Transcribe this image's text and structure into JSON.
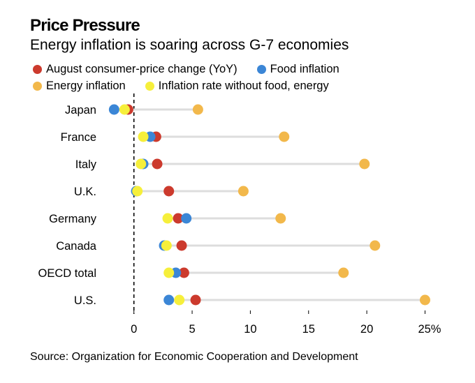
{
  "title": "Price Pressure",
  "subtitle": "Energy inflation is soaring across G-7 economies",
  "source": "Source: Organization for Economic Cooperation and Development",
  "legend": [
    {
      "label": "August consumer-price change (YoY)",
      "color": "#cc3a2d",
      "key": "cpi"
    },
    {
      "label": "Food inflation",
      "color": "#3b86d6",
      "key": "food"
    },
    {
      "label": "Energy inflation",
      "color": "#f2b84b",
      "key": "energy"
    },
    {
      "label": "Inflation rate without food, energy",
      "color": "#f6ef3b",
      "key": "core"
    }
  ],
  "chart_data": {
    "type": "dot-plot",
    "title": "Price Pressure",
    "subtitle": "Energy inflation is soaring across G-7 economies",
    "xlabel": "",
    "ylabel": "",
    "x_unit": "%",
    "xlim": [
      -2.5,
      26
    ],
    "x_ticks": [
      0,
      5,
      10,
      15,
      20,
      25
    ],
    "x_tick_labels": [
      "0",
      "5",
      "10",
      "15",
      "20",
      "25%"
    ],
    "reference_line": {
      "x": 0,
      "style": "dashed"
    },
    "grid": false,
    "legend_position": "top",
    "categories": [
      "Japan",
      "France",
      "Italy",
      "U.K.",
      "Germany",
      "Canada",
      "OECD total",
      "U.S."
    ],
    "series": [
      {
        "name": "August consumer-price change (YoY)",
        "key": "cpi",
        "color": "#cc3a2d",
        "values": [
          -0.5,
          1.9,
          2.0,
          3.0,
          3.8,
          4.1,
          4.3,
          5.3
        ]
      },
      {
        "name": "Food inflation",
        "key": "food",
        "color": "#3b86d6",
        "values": [
          -1.7,
          1.4,
          0.8,
          0.2,
          4.5,
          2.6,
          3.6,
          3.0
        ]
      },
      {
        "name": "Energy inflation",
        "key": "energy",
        "color": "#f2b84b",
        "values": [
          5.5,
          12.9,
          19.8,
          9.4,
          12.6,
          20.7,
          18.0,
          25.0
        ]
      },
      {
        "name": "Inflation rate without food, energy",
        "key": "core",
        "color": "#f6ef3b",
        "values": [
          -0.8,
          0.8,
          0.6,
          0.3,
          2.9,
          2.8,
          3.0,
          3.9
        ]
      }
    ]
  }
}
